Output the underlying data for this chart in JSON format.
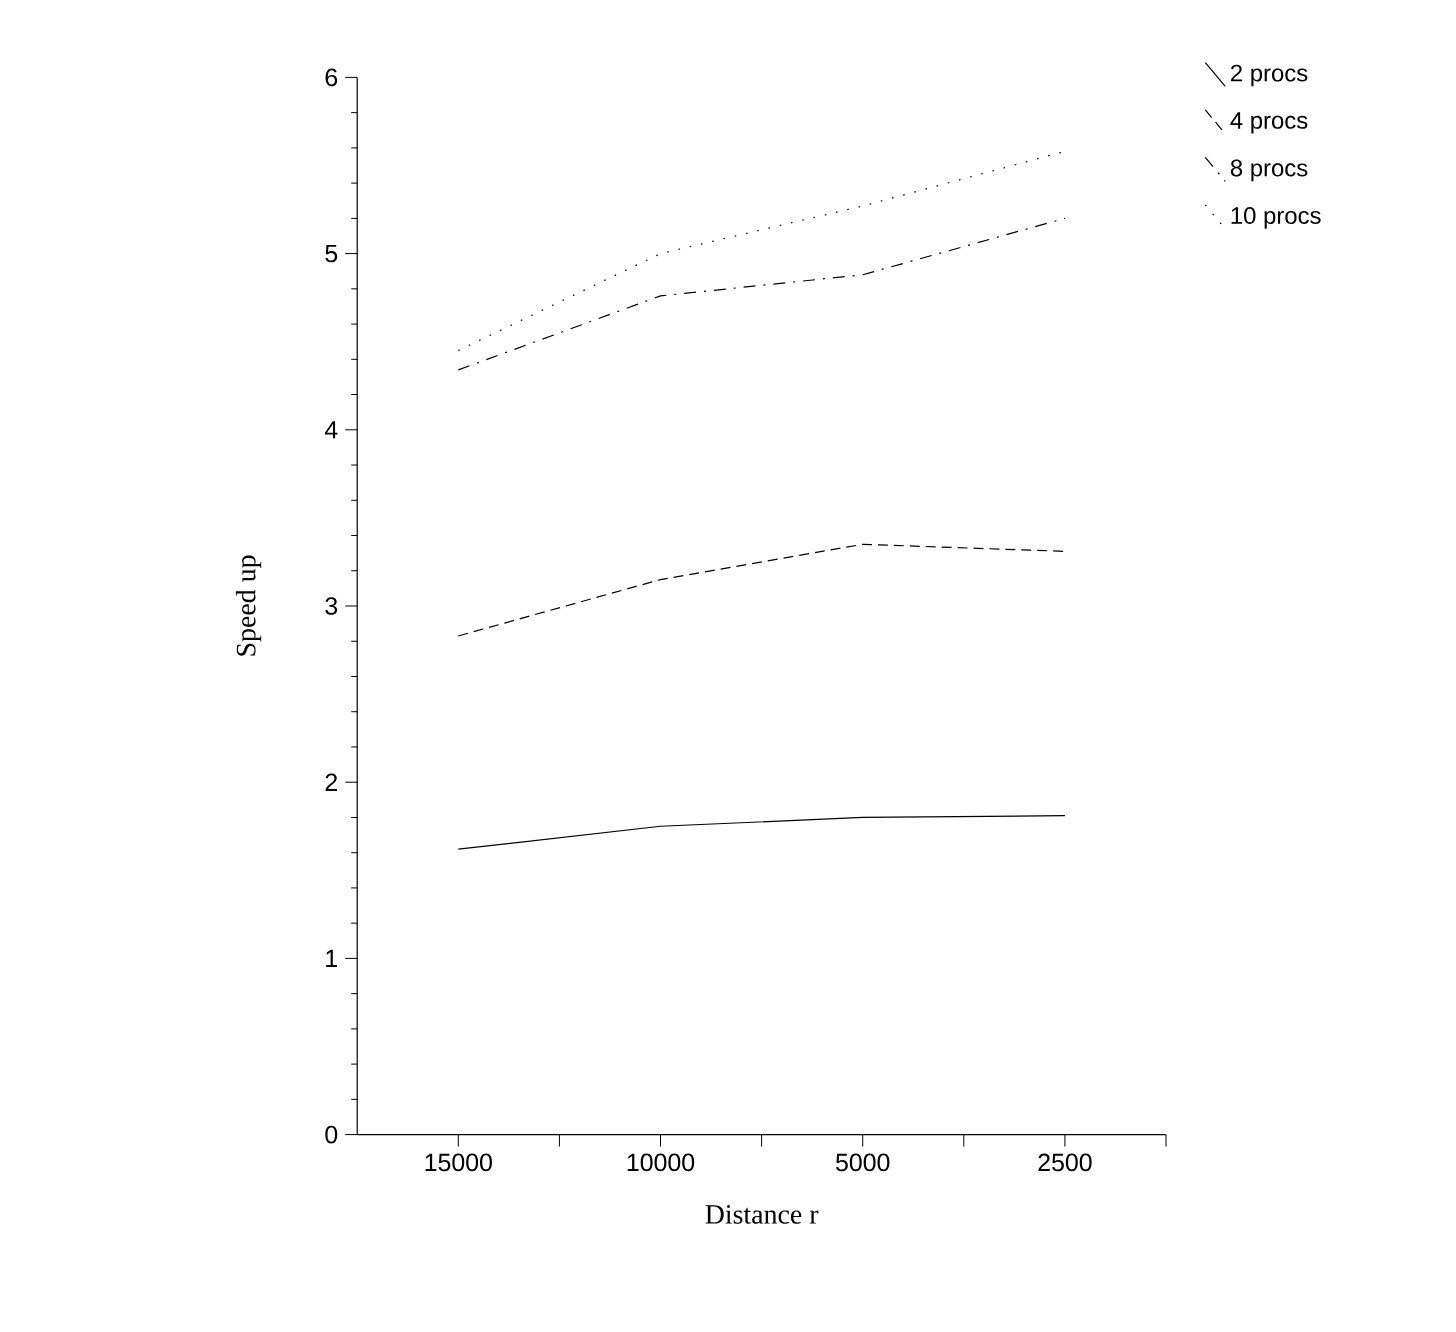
{
  "chart_data": {
    "type": "line",
    "xlabel": "Distance r",
    "ylabel": "Speed up",
    "categories": [
      "15000",
      "10000",
      "5000",
      "2500"
    ],
    "ylim": [
      0,
      6
    ],
    "yticks": [
      0,
      1,
      2,
      3,
      4,
      5,
      6
    ],
    "grid": false,
    "legend": "top right",
    "marker": "none",
    "series": [
      {
        "name": "2 procs",
        "color": "#000000",
        "line_style": "solid",
        "values": [
          1.62,
          1.75,
          1.8,
          1.81
        ]
      },
      {
        "name": "4 procs",
        "color": "#000000",
        "line_style": "dashed",
        "values": [
          2.83,
          3.15,
          3.35,
          3.31
        ]
      },
      {
        "name": "8 procs",
        "color": "#000000",
        "line_style": "dashdot",
        "values": [
          4.34,
          4.76,
          4.88,
          5.2
        ]
      },
      {
        "name": "10 procs",
        "color": "#000000",
        "line_style": "dotted",
        "values": [
          4.45,
          5.0,
          5.27,
          5.58
        ]
      }
    ]
  }
}
